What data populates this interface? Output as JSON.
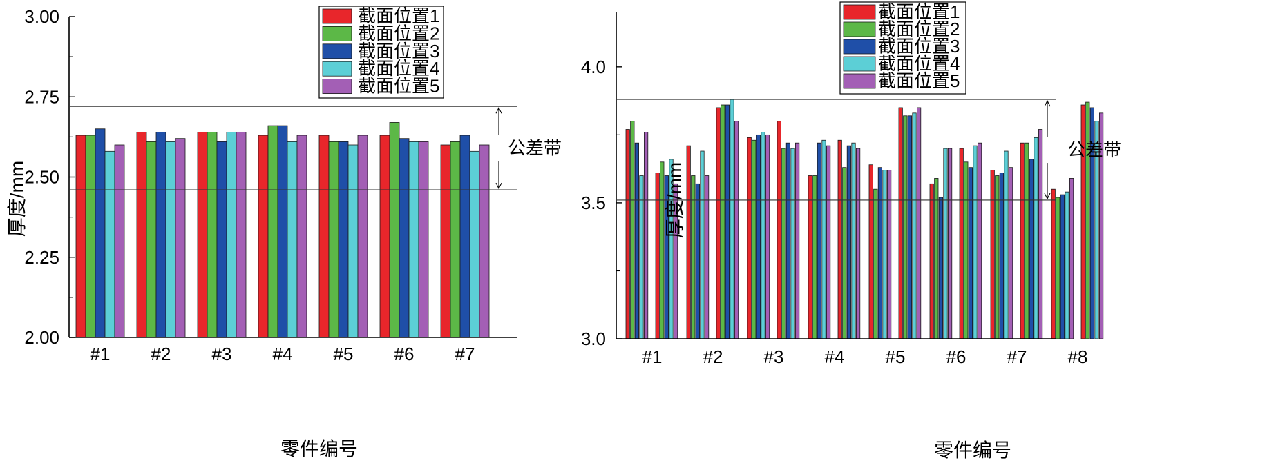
{
  "colors": {
    "series": [
      "#e8262b",
      "#5cb847",
      "#1f4fa8",
      "#5ccfd6",
      "#a35fb5"
    ]
  },
  "chart_data": [
    {
      "type": "bar",
      "title": "",
      "xlabel": "零件编号",
      "ylabel": "厚度/mm",
      "ylim": [
        2.0,
        3.0
      ],
      "yticks": [
        "2.00",
        "2.25",
        "2.50",
        "2.75",
        "3.00"
      ],
      "ytick_values": [
        2.0,
        2.25,
        2.5,
        2.75,
        3.0
      ],
      "categories": [
        "#1",
        "#2",
        "#3",
        "#4",
        "#5",
        "#6",
        "#7"
      ],
      "series": [
        {
          "name": "截面位置1",
          "values": [
            2.63,
            2.64,
            2.64,
            2.63,
            2.63,
            2.63,
            2.6
          ]
        },
        {
          "name": "截面位置2",
          "values": [
            2.63,
            2.61,
            2.64,
            2.66,
            2.61,
            2.67,
            2.61
          ]
        },
        {
          "name": "截面位置3",
          "values": [
            2.65,
            2.64,
            2.61,
            2.66,
            2.61,
            2.62,
            2.63
          ]
        },
        {
          "name": "截面位置4",
          "values": [
            2.58,
            2.61,
            2.64,
            2.61,
            2.6,
            2.61,
            2.58
          ]
        },
        {
          "name": "截面位置5",
          "values": [
            2.6,
            2.62,
            2.64,
            2.63,
            2.63,
            2.61,
            2.6
          ]
        }
      ],
      "tolerance": {
        "label": "公差带",
        "upper": 2.72,
        "lower": 2.46
      },
      "legend": "top-right"
    },
    {
      "type": "bar",
      "title": "",
      "xlabel": "零件编号",
      "ylabel": "厚度/mm",
      "ylim": [
        3.0,
        4.2
      ],
      "yticks": [
        "3.0",
        "3.5",
        "4.0"
      ],
      "ytick_values": [
        3.0,
        3.5,
        4.0
      ],
      "categories": [
        "#1",
        "#2",
        "#3",
        "#4",
        "#5",
        "#6",
        "#7",
        "#8"
      ],
      "series": [
        {
          "name": "截面位置1",
          "values": [
            3.77,
            3.71,
            3.74,
            3.6,
            3.64,
            3.57,
            3.62,
            3.55
          ]
        },
        {
          "name": "截面位置2",
          "values": [
            3.8,
            3.6,
            3.73,
            3.6,
            3.55,
            3.59,
            3.6,
            3.52
          ]
        },
        {
          "name": "截面位置3",
          "values": [
            3.72,
            3.57,
            3.75,
            3.72,
            3.63,
            3.52,
            3.61,
            3.53
          ]
        },
        {
          "name": "截面位置4",
          "values": [
            3.6,
            3.69,
            3.76,
            3.73,
            3.62,
            3.7,
            3.69,
            3.54
          ]
        },
        {
          "name": "截面位置5",
          "values": [
            3.76,
            3.6,
            3.75,
            3.71,
            3.62,
            3.7,
            3.63,
            3.59
          ]
        },
        {
          "name": "截面位置1",
          "values": [
            3.61,
            3.85,
            3.8,
            3.73,
            3.85,
            3.7,
            3.72,
            3.86
          ]
        },
        {
          "name": "截面位置2",
          "values": [
            3.65,
            3.86,
            3.7,
            3.63,
            3.82,
            3.65,
            3.72,
            3.87
          ]
        },
        {
          "name": "截面位置3",
          "values": [
            3.6,
            3.86,
            3.72,
            3.71,
            3.82,
            3.63,
            3.66,
            3.85
          ]
        },
        {
          "name": "截面位置4",
          "values": [
            3.66,
            3.88,
            3.7,
            3.72,
            3.83,
            3.71,
            3.74,
            3.8
          ]
        },
        {
          "name": "截面位置5",
          "values": [
            3.57,
            3.8,
            3.72,
            3.7,
            3.85,
            3.72,
            3.77,
            3.83
          ]
        }
      ],
      "tolerance": {
        "label": "公差带",
        "upper": 3.88,
        "lower": 3.51
      },
      "legend": "top"
    }
  ]
}
